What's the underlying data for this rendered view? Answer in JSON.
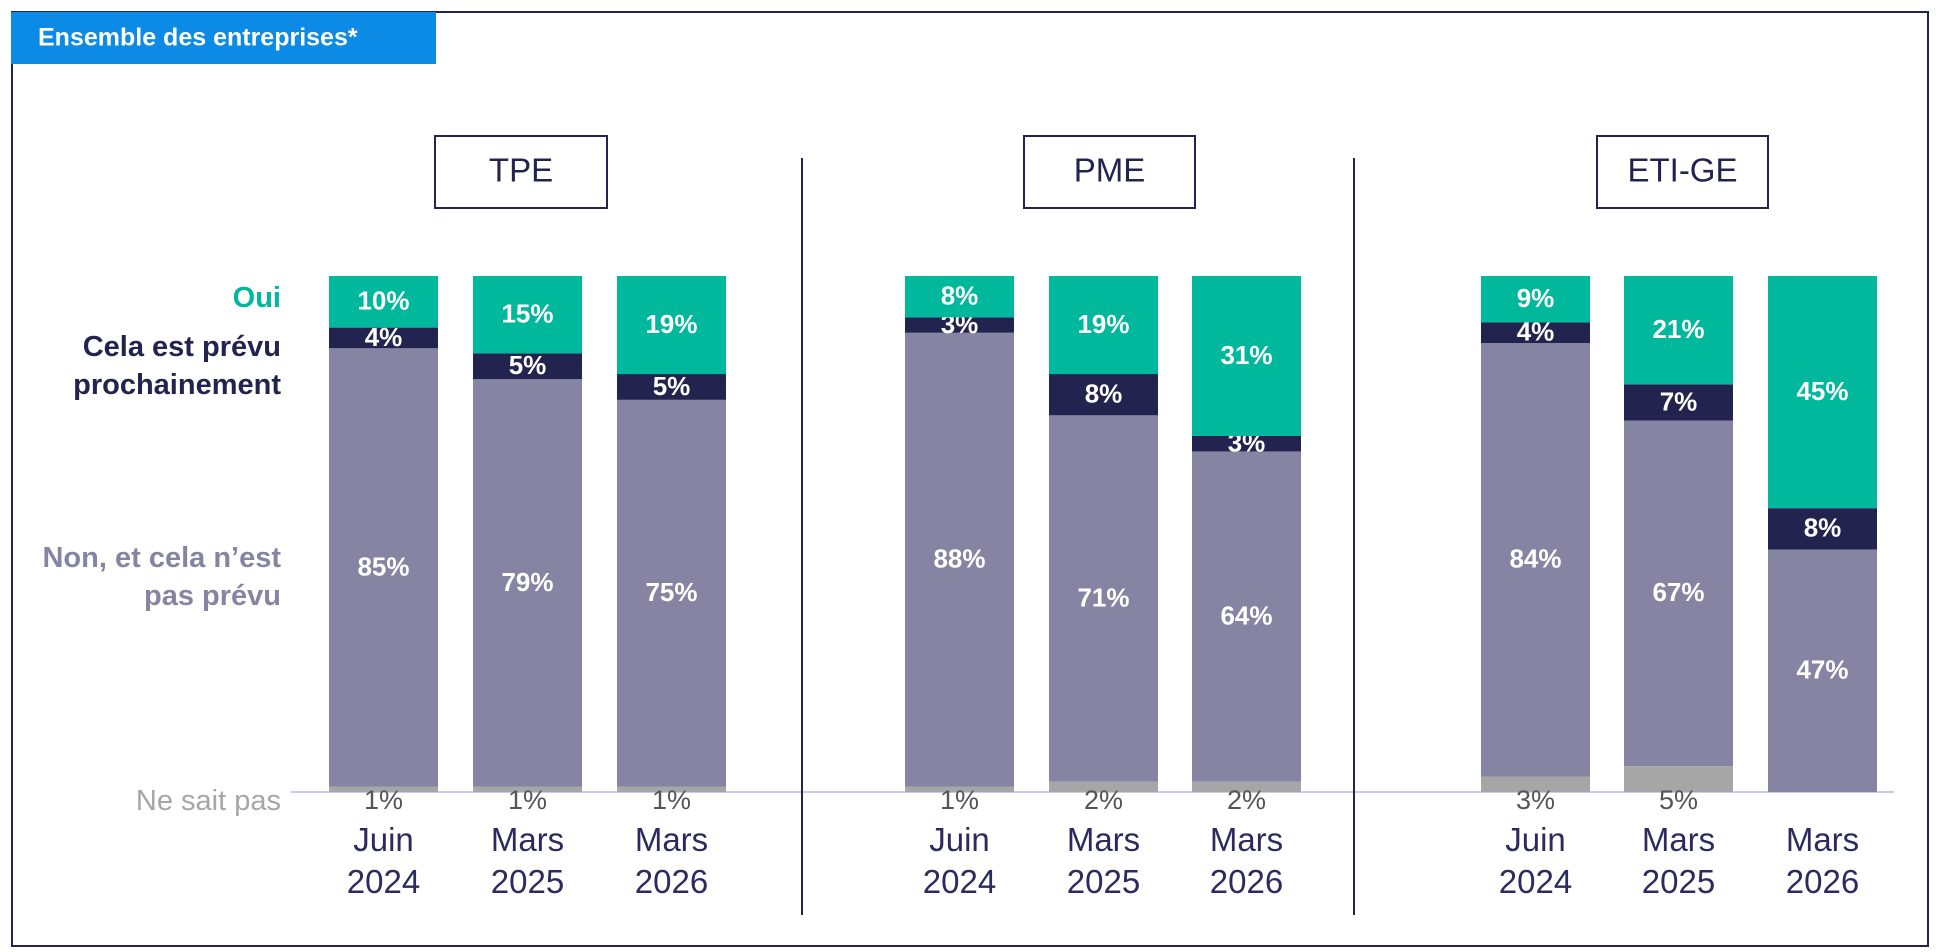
{
  "header": "Ensemble des entreprises*",
  "legend": [
    {
      "name": "Ne sait pas",
      "color": "#a6a6a6"
    },
    {
      "name": "Non, et cela n’est pas prévu",
      "color": "#8585a3"
    },
    {
      "name": "Cela est prévu prochainement",
      "color": "#23234f"
    },
    {
      "name": "Oui",
      "color": "#00b89c"
    }
  ],
  "chart_data": [
    {
      "type": "stacked_bar",
      "title": "TPE",
      "ylim": [
        0,
        100
      ],
      "categories": [
        "Juin 2024",
        "Mars 2025",
        "Mars 2026"
      ],
      "series": [
        {
          "values": [
            1,
            1,
            1
          ],
          "value_labels": [
            "1%",
            "1%",
            "1%"
          ]
        },
        {
          "values": [
            85,
            79,
            75
          ],
          "value_labels": [
            "85%",
            "79%",
            "75%"
          ]
        },
        {
          "values": [
            4,
            5,
            5
          ],
          "value_labels": [
            "4%",
            "5%",
            "5%"
          ]
        },
        {
          "values": [
            10,
            15,
            19
          ],
          "value_labels": [
            "10%",
            "15%",
            "19%"
          ]
        }
      ]
    },
    {
      "type": "stacked_bar",
      "title": "PME",
      "ylim": [
        0,
        100
      ],
      "categories": [
        "Juin 2024",
        "Mars 2025",
        "Mars 2026"
      ],
      "series": [
        {
          "values": [
            1,
            2,
            2
          ],
          "value_labels": [
            "1%",
            "2%",
            "2%"
          ]
        },
        {
          "values": [
            88,
            71,
            64
          ],
          "value_labels": [
            "88%",
            "71%",
            "64%"
          ]
        },
        {
          "values": [
            3,
            8,
            3
          ],
          "value_labels": [
            "3%",
            "8%",
            "3%"
          ]
        },
        {
          "values": [
            8,
            19,
            31
          ],
          "value_labels": [
            "8%",
            "19%",
            "31%"
          ]
        }
      ]
    },
    {
      "type": "stacked_bar",
      "title": "ETI-GE",
      "ylim": [
        0,
        100
      ],
      "categories": [
        "Juin 2024",
        "Mars 2025",
        "Mars 2026"
      ],
      "series": [
        {
          "values": [
            3,
            5,
            null
          ],
          "value_labels": [
            "3%",
            "5%",
            null
          ]
        },
        {
          "values": [
            84,
            67,
            47
          ],
          "value_labels": [
            "84%",
            "67%",
            "47%"
          ]
        },
        {
          "values": [
            4,
            7,
            8
          ],
          "value_labels": [
            "4%",
            "7%",
            "8%"
          ]
        },
        {
          "values": [
            9,
            21,
            45
          ],
          "value_labels": [
            "9%",
            "21%",
            "45%"
          ]
        }
      ]
    }
  ]
}
